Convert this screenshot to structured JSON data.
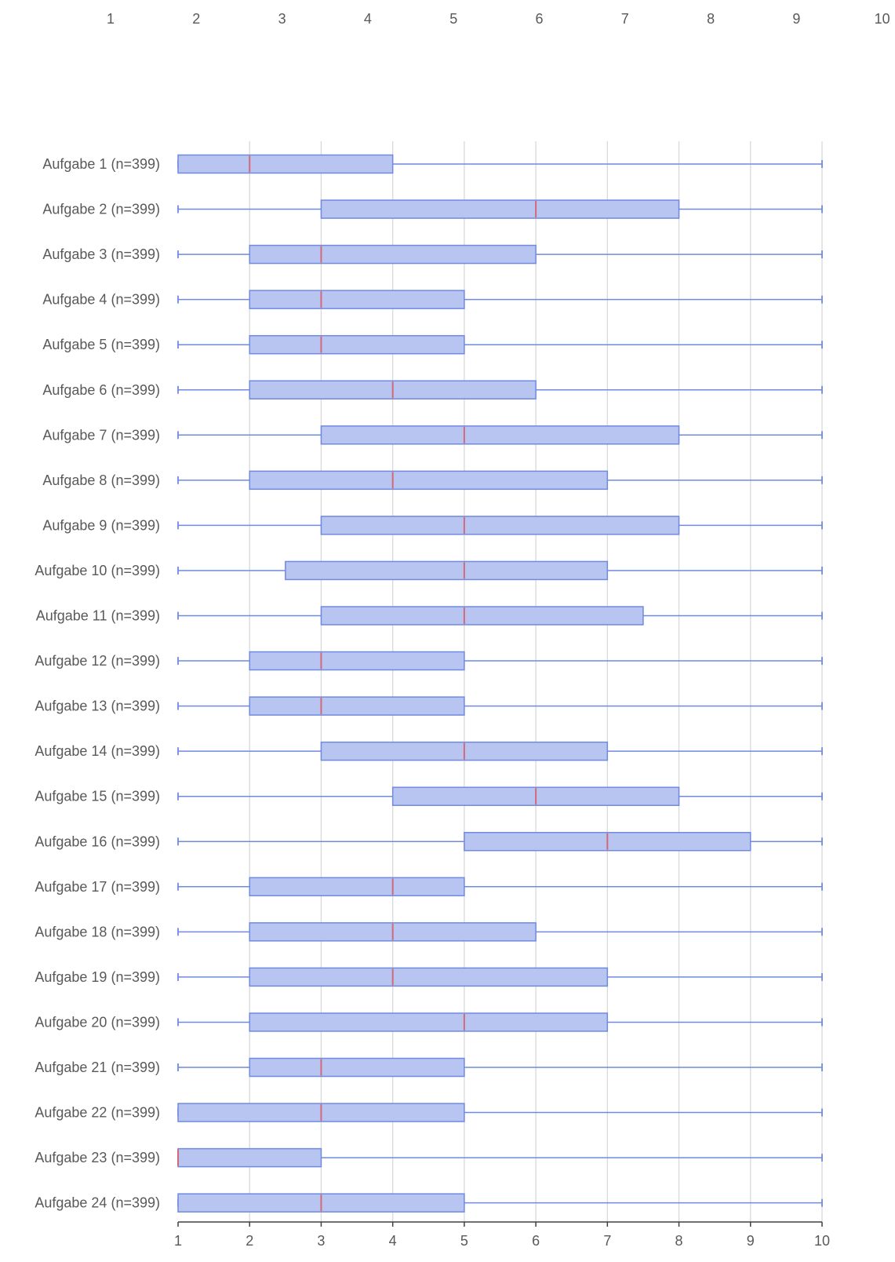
{
  "chart_data": {
    "type": "boxplot",
    "orientation": "horizontal",
    "top_scale_ticks": [
      "1",
      "2",
      "3",
      "4",
      "5",
      "6",
      "7",
      "8",
      "9",
      "10"
    ],
    "x_ticks": [
      "1",
      "2",
      "3",
      "4",
      "5",
      "6",
      "7",
      "8",
      "9",
      "10"
    ],
    "xlim": [
      1,
      10
    ],
    "grid": "vertical",
    "legend": "none",
    "colors": {
      "box_fill": "#b8c5f0",
      "box_stroke": "#6f8ae0",
      "whisker": "#6f8ae0",
      "median": "#d2697a",
      "grid": "#d9d9d9",
      "axis": "#404040",
      "text": "#595959"
    },
    "series": [
      {
        "label": "Aufgabe 1 (n=399)",
        "min": 1,
        "q1": 1,
        "median": 2,
        "q3": 4,
        "max": 10
      },
      {
        "label": "Aufgabe 2 (n=399)",
        "min": 1,
        "q1": 3,
        "median": 6,
        "q3": 8,
        "max": 10
      },
      {
        "label": "Aufgabe 3 (n=399)",
        "min": 1,
        "q1": 2,
        "median": 3,
        "q3": 6,
        "max": 10
      },
      {
        "label": "Aufgabe 4 (n=399)",
        "min": 1,
        "q1": 2,
        "median": 3,
        "q3": 5,
        "max": 10
      },
      {
        "label": "Aufgabe 5 (n=399)",
        "min": 1,
        "q1": 2,
        "median": 3,
        "q3": 5,
        "max": 10
      },
      {
        "label": "Aufgabe 6 (n=399)",
        "min": 1,
        "q1": 2,
        "median": 4,
        "q3": 6,
        "max": 10
      },
      {
        "label": "Aufgabe 7 (n=399)",
        "min": 1,
        "q1": 3,
        "median": 5,
        "q3": 8,
        "max": 10
      },
      {
        "label": "Aufgabe 8 (n=399)",
        "min": 1,
        "q1": 2,
        "median": 4,
        "q3": 7,
        "max": 10
      },
      {
        "label": "Aufgabe 9 (n=399)",
        "min": 1,
        "q1": 3,
        "median": 5,
        "q3": 8,
        "max": 10
      },
      {
        "label": "Aufgabe 10 (n=399)",
        "min": 1,
        "q1": 2.5,
        "median": 5,
        "q3": 7,
        "max": 10
      },
      {
        "label": "Aufgabe 11 (n=399)",
        "min": 1,
        "q1": 3,
        "median": 5,
        "q3": 7.5,
        "max": 10
      },
      {
        "label": "Aufgabe 12 (n=399)",
        "min": 1,
        "q1": 2,
        "median": 3,
        "q3": 5,
        "max": 10
      },
      {
        "label": "Aufgabe 13 (n=399)",
        "min": 1,
        "q1": 2,
        "median": 3,
        "q3": 5,
        "max": 10
      },
      {
        "label": "Aufgabe 14 (n=399)",
        "min": 1,
        "q1": 3,
        "median": 5,
        "q3": 7,
        "max": 10
      },
      {
        "label": "Aufgabe 15 (n=399)",
        "min": 1,
        "q1": 4,
        "median": 6,
        "q3": 8,
        "max": 10
      },
      {
        "label": "Aufgabe 16 (n=399)",
        "min": 1,
        "q1": 5,
        "median": 7,
        "q3": 9,
        "max": 10
      },
      {
        "label": "Aufgabe 17 (n=399)",
        "min": 1,
        "q1": 2,
        "median": 4,
        "q3": 5,
        "max": 10
      },
      {
        "label": "Aufgabe 18 (n=399)",
        "min": 1,
        "q1": 2,
        "median": 4,
        "q3": 6,
        "max": 10
      },
      {
        "label": "Aufgabe 19 (n=399)",
        "min": 1,
        "q1": 2,
        "median": 4,
        "q3": 7,
        "max": 10
      },
      {
        "label": "Aufgabe 20 (n=399)",
        "min": 1,
        "q1": 2,
        "median": 5,
        "q3": 7,
        "max": 10
      },
      {
        "label": "Aufgabe 21 (n=399)",
        "min": 1,
        "q1": 2,
        "median": 3,
        "q3": 5,
        "max": 10
      },
      {
        "label": "Aufgabe 22 (n=399)",
        "min": 1,
        "q1": 1,
        "median": 3,
        "q3": 5,
        "max": 10
      },
      {
        "label": "Aufgabe 23 (n=399)",
        "min": 1,
        "q1": 1,
        "median": 1,
        "q3": 3,
        "max": 10
      },
      {
        "label": "Aufgabe 24 (n=399)",
        "min": 1,
        "q1": 1,
        "median": 3,
        "q3": 5,
        "max": 10
      }
    ]
  }
}
